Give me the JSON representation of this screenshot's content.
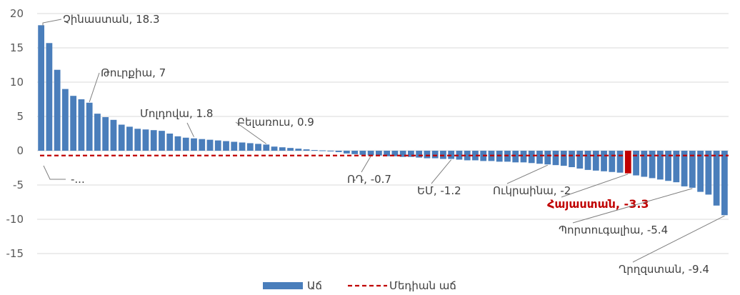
{
  "chart_data": {
    "type": "bar",
    "ylim": [
      -15,
      20
    ],
    "yticks": [
      20,
      15,
      10,
      5,
      0,
      -5,
      -10,
      -15
    ],
    "grid": true,
    "legend_position": "bottom",
    "colors": {
      "bar": "#4a7ebb",
      "highlight": "#c00000",
      "median": "#c00000",
      "grid": "#d9d9d9"
    },
    "values": [
      18.3,
      15.7,
      11.8,
      9.0,
      8.0,
      7.5,
      7.0,
      5.4,
      4.9,
      4.5,
      3.8,
      3.5,
      3.2,
      3.1,
      3.0,
      2.9,
      2.5,
      2.1,
      1.9,
      1.8,
      1.7,
      1.6,
      1.5,
      1.4,
      1.3,
      1.2,
      1.1,
      1.0,
      0.9,
      0.6,
      0.5,
      0.4,
      0.3,
      0.2,
      0.1,
      0.05,
      -0.1,
      -0.2,
      -0.4,
      -0.5,
      -0.6,
      -0.7,
      -0.7,
      -0.8,
      -0.8,
      -0.9,
      -0.9,
      -1.0,
      -1.1,
      -1.1,
      -1.2,
      -1.2,
      -1.3,
      -1.4,
      -1.4,
      -1.5,
      -1.5,
      -1.6,
      -1.6,
      -1.7,
      -1.7,
      -1.8,
      -1.9,
      -2.0,
      -2.1,
      -2.2,
      -2.4,
      -2.6,
      -2.8,
      -2.9,
      -3.0,
      -3.1,
      -3.2,
      -3.3,
      -3.6,
      -3.8,
      -4.0,
      -4.2,
      -4.4,
      -4.6,
      -5.2,
      -5.4,
      -6.0,
      -6.4,
      -8.0,
      -9.4
    ],
    "highlight_index": 73,
    "median": -0.7,
    "annotations": [
      {
        "text": "Չինաստան, 18.3",
        "index": 0,
        "value": 18.3
      },
      {
        "text": "Թուրքիա, 7",
        "index": 6,
        "value": 7.0
      },
      {
        "text": "Մոլդովա, 1.8",
        "index": 19,
        "value": 1.8
      },
      {
        "text": "Բելառուս, 0.9",
        "index": 28,
        "value": 0.9
      },
      {
        "text": "-...",
        "index": 2,
        "value": -0.7
      },
      {
        "text": "ՌԴ, -0.7",
        "index": 41,
        "value": -0.7
      },
      {
        "text": "ԵՄ, -1.2",
        "index": 51,
        "value": -1.2
      },
      {
        "text": "Ուկրաինա, -2",
        "index": 63,
        "value": -2.0
      },
      {
        "text": "Հայաստան, -3.3",
        "index": 73,
        "value": -3.3,
        "highlight": true
      },
      {
        "text": "Պորտուգալիա, -5.4",
        "index": 81,
        "value": -5.4
      },
      {
        "text": "Ղրղզստան, -9.4",
        "index": 85,
        "value": -9.4
      }
    ],
    "legend": [
      {
        "label": "Աճ",
        "kind": "bar"
      },
      {
        "label": "Մեդիան աճ",
        "kind": "dashed-line"
      }
    ]
  }
}
